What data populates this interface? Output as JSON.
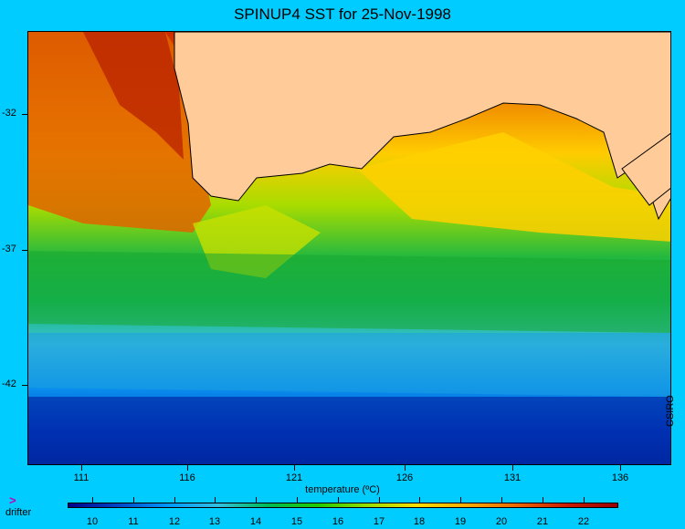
{
  "title": "SPINUP4 SST for 25-Nov-1998",
  "map": {
    "y_ticks": [
      "-32",
      "-37",
      "-42"
    ],
    "x_ticks": [
      "111",
      "116",
      "121",
      "126",
      "131",
      "136"
    ],
    "land_color": "#ffcc99",
    "colorbar_label": "temperature (ºC)",
    "colorbar_ticks": [
      "10",
      "11",
      "12",
      "13",
      "14",
      "15",
      "16",
      "17",
      "18",
      "19",
      "20",
      "21",
      "22"
    ],
    "colorbar_colors": [
      "#00008b",
      "#0047c7",
      "#0099ff",
      "#33c0e0",
      "#00bb55",
      "#22cc00",
      "#99dd00",
      "#ffdd00",
      "#ffaa00",
      "#ee6600",
      "#cc1a00",
      "#990000"
    ]
  },
  "credit": "CSIRO",
  "legend": {
    "drifter_marker": ">",
    "drifter_label": "drifter"
  }
}
